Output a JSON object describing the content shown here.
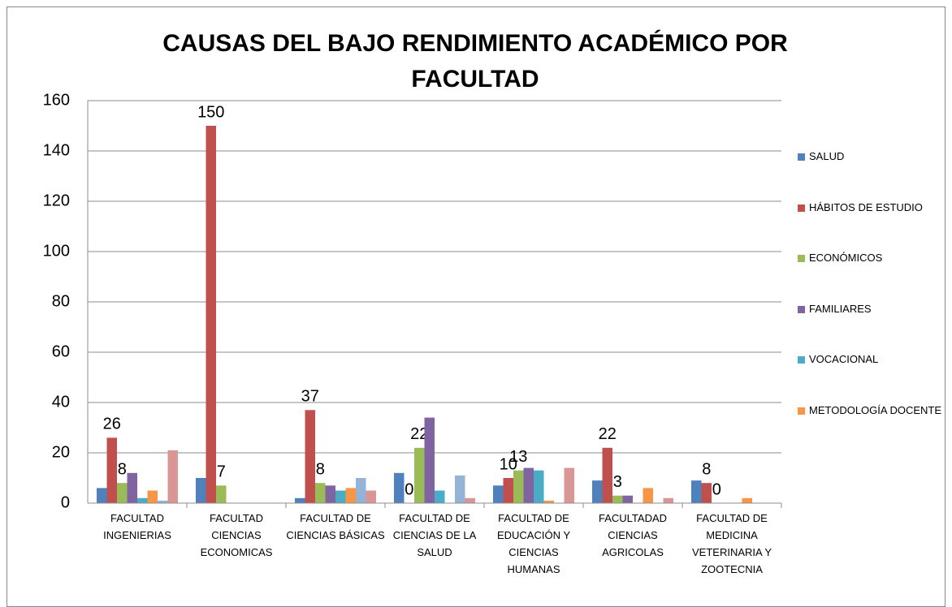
{
  "chart_data": {
    "type": "bar",
    "title": "CAUSAS DEL BAJO RENDIMIENTO ACADÉMICO POR FACULTAD",
    "categories": [
      "FACULTAD INGENIERIAS",
      "FACULTAD CIENCIAS ECONOMICAS",
      "FACULTAD DE CIENCIAS BÁSICAS",
      "FACULTAD DE CIENCIAS DE LA SALUD",
      "FACULTAD DE EDUCACIÓN Y CIENCIAS HUMANAS",
      "FACULTADAD CIENCIAS AGRICOLAS",
      "FACULTAD DE MEDICINA VETERINARIA Y ZOOTECNIA"
    ],
    "series": [
      {
        "name": "SALUD",
        "color": "#4F81BD",
        "values": [
          6,
          10,
          2,
          12,
          7,
          9,
          9
        ]
      },
      {
        "name": "HÁBITOS DE ESTUDIO",
        "color": "#C0504D",
        "values": [
          26,
          150,
          37,
          0,
          10,
          22,
          8
        ],
        "data_labels": true
      },
      {
        "name": "ECONÓMICOS",
        "color": "#9BBB59",
        "values": [
          8,
          7,
          8,
          22,
          13,
          3,
          0
        ],
        "data_labels": true
      },
      {
        "name": "FAMILIARES",
        "color": "#8064A2",
        "values": [
          12,
          0,
          7,
          34,
          14,
          3,
          0
        ]
      },
      {
        "name": "VOCACIONAL",
        "color": "#4BACC6",
        "values": [
          2,
          0,
          5,
          5,
          13,
          0,
          0
        ]
      },
      {
        "name": "METODOLOGÍA DOCENTE",
        "color": "#F79646",
        "values": [
          5,
          0,
          6,
          0,
          1,
          6,
          2
        ]
      },
      {
        "color": "#95B3D7",
        "values": [
          1,
          0,
          10,
          11,
          0,
          0,
          0
        ]
      },
      {
        "color": "#D99694",
        "values": [
          21,
          0,
          5,
          2,
          14,
          2,
          0
        ]
      }
    ],
    "ylim": [
      0,
      160
    ],
    "yticks": [
      0,
      20,
      40,
      60,
      80,
      100,
      120,
      140,
      160
    ],
    "grid": true,
    "legend": "right"
  }
}
